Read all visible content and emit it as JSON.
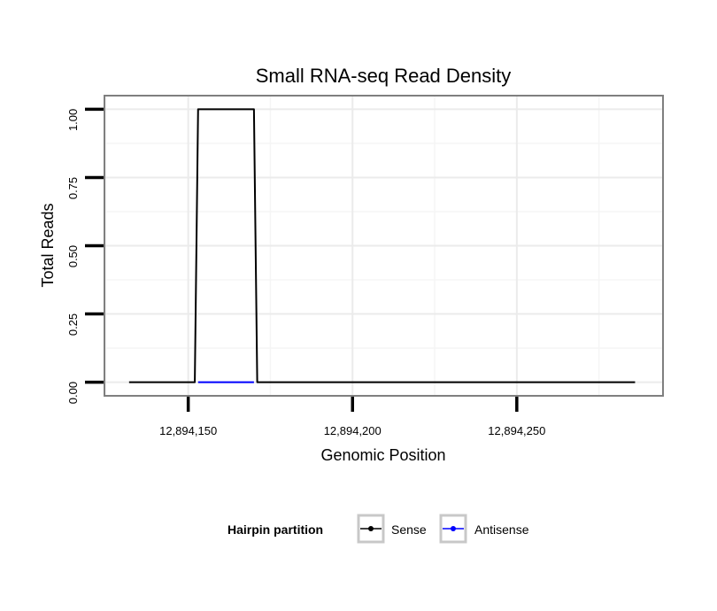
{
  "chart_data": {
    "type": "line",
    "title": "Small RNA-seq Read Density",
    "xlabel": "Genomic Position",
    "ylabel": "Total Reads",
    "xlim": [
      12894124.5,
      12894294.5
    ],
    "ylim": [
      -0.05,
      1.05
    ],
    "x_ticks": [
      12894150,
      12894200,
      12894250
    ],
    "x_tick_labels": [
      "12,894,150",
      "12,894,200",
      "12,894,250"
    ],
    "y_ticks": [
      0,
      0.25,
      0.5,
      0.75,
      1.0
    ],
    "y_tick_labels": [
      "0.00",
      "0.25",
      "0.50",
      "0.75",
      "1.00"
    ],
    "grid": true,
    "legend_title": "Hairpin partition",
    "legend_position": "bottom",
    "series": [
      {
        "name": "Sense",
        "color": "#000000",
        "x": [
          12894132,
          12894152,
          12894153,
          12894170,
          12894171,
          12894286
        ],
        "y": [
          0,
          0,
          1,
          1,
          0,
          0
        ]
      },
      {
        "name": "Antisense",
        "color": "#0000ff",
        "x": [
          12894153,
          12894170
        ],
        "y": [
          0,
          0
        ]
      }
    ]
  }
}
